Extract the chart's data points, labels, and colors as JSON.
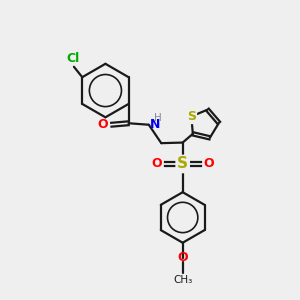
{
  "bg": "#efefef",
  "bc": "#1a1a1a",
  "clc": "#00aa00",
  "oc": "#ff0000",
  "nc": "#0000ee",
  "sc": "#aaaa00",
  "hc": "#888899",
  "lw": 1.6,
  "fs": 9,
  "fs_s": 7.5,
  "xlim": [
    0,
    10
  ],
  "ylim": [
    0,
    10
  ]
}
